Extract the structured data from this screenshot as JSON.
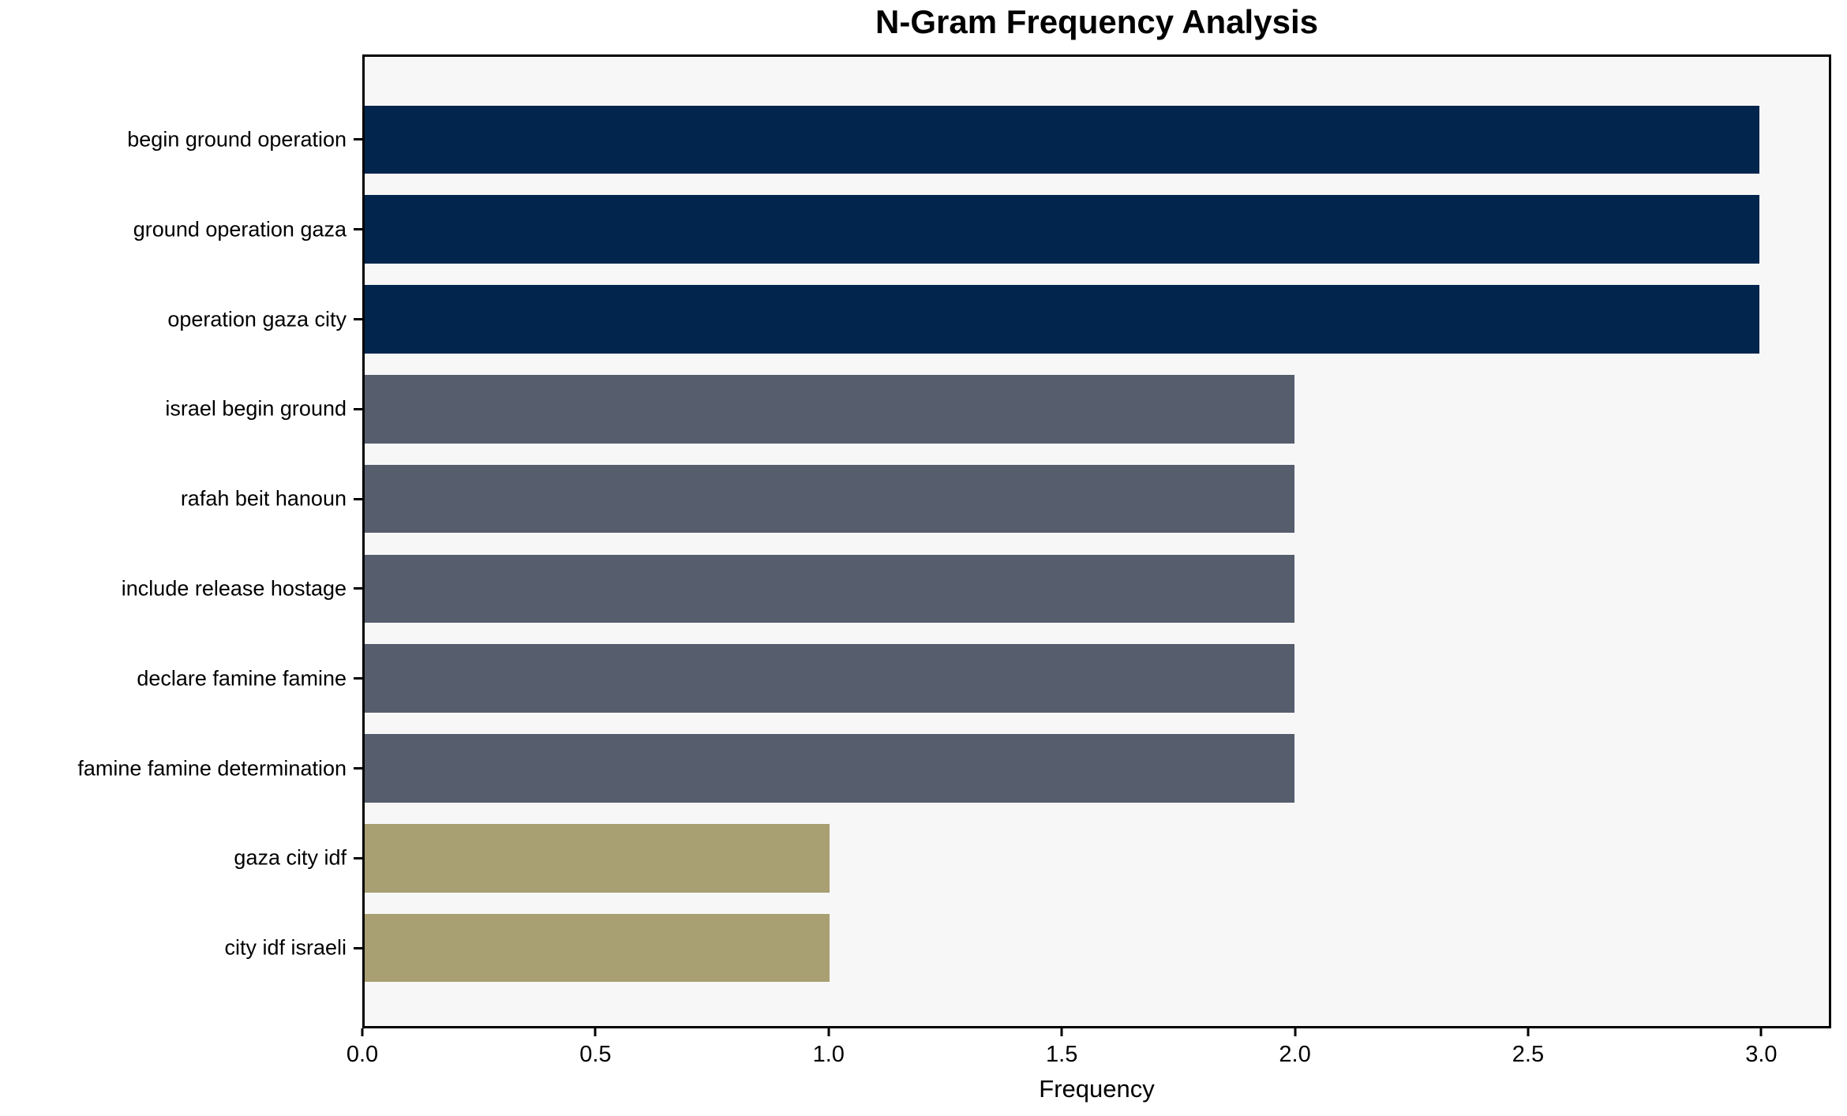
{
  "chart_data": {
    "type": "bar",
    "orientation": "horizontal",
    "title": "N-Gram Frequency Analysis",
    "xlabel": "Frequency",
    "ylabel": "",
    "categories": [
      "begin ground operation",
      "ground operation gaza",
      "operation gaza city",
      "israel begin ground",
      "rafah beit hanoun",
      "include release hostage",
      "declare famine famine",
      "famine famine determination",
      "gaza city idf",
      "city idf israeli"
    ],
    "values": [
      3,
      3,
      3,
      2,
      2,
      2,
      2,
      2,
      1,
      1
    ],
    "bar_colors": [
      "#02254d",
      "#02254d",
      "#02254d",
      "#565d6d",
      "#565d6d",
      "#565d6d",
      "#565d6d",
      "#565d6d",
      "#a89f72",
      "#a89f72"
    ],
    "xlim": [
      0,
      3.15
    ],
    "x_ticks": [
      0.0,
      0.5,
      1.0,
      1.5,
      2.0,
      2.5,
      3.0
    ],
    "x_tick_labels": [
      "0.0",
      "0.5",
      "1.0",
      "1.5",
      "2.0",
      "2.5",
      "3.0"
    ],
    "grid": false,
    "legend": null,
    "colors": {
      "plot_background": "#f7f7f7",
      "figure_background": "#ffffff",
      "frame": "#000000",
      "text": "#000000"
    }
  }
}
